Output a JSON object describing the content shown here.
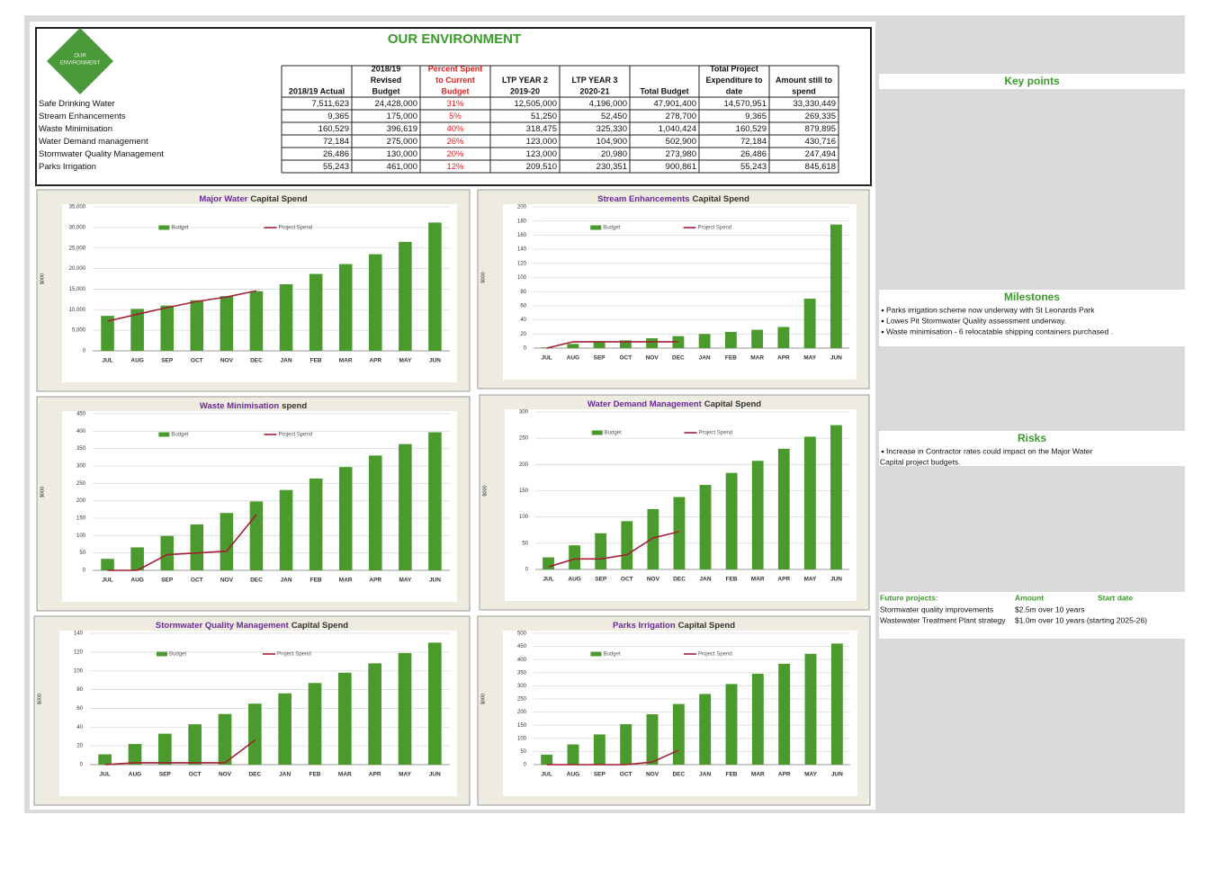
{
  "header": {
    "title": "OUR ENVIRONMENT",
    "logo_text": [
      "OUR",
      "ENVIRONMENT"
    ]
  },
  "table": {
    "columns": [
      [
        "2018/19 Actual"
      ],
      [
        "2018/19",
        "Revised",
        "Budget"
      ],
      [
        "Percent Spent",
        "to Current",
        "Budget"
      ],
      [
        "LTP YEAR 2",
        "2019-20"
      ],
      [
        "LTP YEAR 3",
        "2020-21"
      ],
      [
        "Total Budget"
      ],
      [
        "Total Project",
        "Expenditure to",
        "date"
      ],
      [
        "Amount still to",
        "spend"
      ]
    ],
    "rows": [
      [
        "Safe Drinking Water",
        "7,511,623",
        "24,428,000",
        "31%",
        "12,505,000",
        "4,196,000",
        "47,901,400",
        "14,570,951",
        "33,330,449"
      ],
      [
        "Stream Enhancements",
        "9,365",
        "175,000",
        "5%",
        "51,250",
        "52,450",
        "278,700",
        "9,365",
        "269,335"
      ],
      [
        "Waste Minimisation",
        "160,529",
        "396,619",
        "40%",
        "318,475",
        "325,330",
        "1,040,424",
        "160,529",
        "879,895"
      ],
      [
        "Water Demand management",
        "72,184",
        "275,000",
        "26%",
        "123,000",
        "104,900",
        "502,900",
        "72,184",
        "430,716"
      ],
      [
        "Stormwater Quality Management",
        "26,486",
        "130,000",
        "20%",
        "123,000",
        "20,980",
        "273,980",
        "26,486",
        "247,494"
      ],
      [
        "Parks Irrigation",
        "55,243",
        "461,000",
        "12%",
        "209,510",
        "230,351",
        "900,861",
        "55,243",
        "845,618"
      ]
    ]
  },
  "chart_data": [
    {
      "type": "bar",
      "title": [
        "Major Water",
        "Capital Spend"
      ],
      "y_label": "$000",
      "categories": [
        "JUL",
        "AUG",
        "SEP",
        "OCT",
        "NOV",
        "DEC",
        "JAN",
        "FEB",
        "MAR",
        "APR",
        "MAY",
        "JUN"
      ],
      "series": [
        {
          "name": "Budget",
          "color": "#4a9a2e",
          "values": [
            8500,
            10200,
            11000,
            12300,
            13300,
            14500,
            16200,
            18700,
            21100,
            23500,
            26500,
            31200
          ]
        },
        {
          "name": "Project Spend",
          "color": "#a31f34",
          "values": [
            7200,
            8900,
            10500,
            12000,
            13100,
            14600,
            null,
            null,
            null,
            null,
            null,
            null
          ]
        }
      ],
      "ylim": [
        0,
        35000
      ],
      "yticks": [
        0,
        {
          "value": 5000,
          "label": "5,000"
        },
        {
          "value": 10000,
          "label": "10,000"
        },
        {
          "value": 15000,
          "label": "15,000"
        },
        {
          "value": 20000,
          "label": "20,000"
        },
        {
          "value": 25000,
          "label": "25,000"
        },
        {
          "value": 30000,
          "label": "30,000"
        },
        {
          "value": 35000,
          "label": "35,000"
        }
      ],
      "grid": true
    },
    {
      "type": "bar",
      "title": [
        "Stream Enhancements",
        "Capital Spend"
      ],
      "y_label": "$000",
      "categories": [
        "JUL",
        "AUG",
        "SEP",
        "OCT",
        "NOV",
        "DEC",
        "JAN",
        "FEB",
        "MAR",
        "APR",
        "MAY",
        "JUN"
      ],
      "series": [
        {
          "name": "Budget",
          "color": "#4a9a2e",
          "values": [
            1,
            6,
            9,
            11,
            14,
            17,
            20,
            23,
            26,
            30,
            70,
            175
          ]
        },
        {
          "name": "Project Spend",
          "color": "#a31f34",
          "values": [
            0,
            9,
            9,
            9,
            9,
            9,
            null,
            null,
            null,
            null,
            null,
            null
          ]
        }
      ],
      "ylim": [
        0,
        200
      ],
      "yticks": [
        0,
        20,
        40,
        60,
        80,
        100,
        120,
        140,
        160,
        180,
        200
      ],
      "grid": true
    },
    {
      "type": "bar",
      "title": [
        "Waste Minimisation",
        "spend"
      ],
      "y_label": "$000",
      "categories": [
        "JUL",
        "AUG",
        "SEP",
        "OCT",
        "NOV",
        "DEC",
        "JAN",
        "FEB",
        "MAR",
        "APR",
        "MAY",
        "JUN"
      ],
      "series": [
        {
          "name": "Budget",
          "color": "#4a9a2e",
          "values": [
            33,
            66,
            99,
            132,
            165,
            198,
            231,
            264,
            297,
            330,
            363,
            397
          ]
        },
        {
          "name": "Project Spend",
          "color": "#a31f34",
          "values": [
            0,
            0,
            45,
            50,
            55,
            160,
            null,
            null,
            null,
            null,
            null,
            null
          ]
        }
      ],
      "ylim": [
        0,
        450
      ],
      "yticks": [
        0,
        50,
        100,
        150,
        200,
        250,
        300,
        350,
        400,
        450
      ],
      "grid": true
    },
    {
      "type": "bar",
      "title": [
        "Water Demand Management",
        "Capital Spend"
      ],
      "y_label": "$000",
      "categories": [
        "JUL",
        "AUG",
        "SEP",
        "OCT",
        "NOV",
        "DEC",
        "JAN",
        "FEB",
        "MAR",
        "APR",
        "MAY",
        "JUN"
      ],
      "series": [
        {
          "name": "Budget",
          "color": "#4a9a2e",
          "values": [
            23,
            46,
            69,
            92,
            115,
            138,
            161,
            184,
            207,
            230,
            253,
            275
          ]
        },
        {
          "name": "Project Spend",
          "color": "#a31f34",
          "values": [
            5,
            20,
            20,
            28,
            60,
            72,
            null,
            null,
            null,
            null,
            null,
            null
          ]
        }
      ],
      "ylim": [
        0,
        300
      ],
      "yticks": [
        0,
        50,
        100,
        150,
        200,
        250,
        300
      ],
      "grid": true
    },
    {
      "type": "bar",
      "title": [
        "Stormwater Quality Management",
        "Capital Spend"
      ],
      "y_label": "$000",
      "categories": [
        "JUL",
        "AUG",
        "SEP",
        "OCT",
        "NOV",
        "DEC",
        "JAN",
        "FEB",
        "MAR",
        "APR",
        "MAY",
        "JUN"
      ],
      "series": [
        {
          "name": "Budget",
          "color": "#4a9a2e",
          "values": [
            11,
            22,
            33,
            43,
            54,
            65,
            76,
            87,
            98,
            108,
            119,
            130
          ]
        },
        {
          "name": "Project Spend",
          "color": "#a31f34",
          "values": [
            0,
            2,
            2,
            2,
            2,
            26,
            null,
            null,
            null,
            null,
            null,
            null
          ]
        }
      ],
      "ylim": [
        0,
        140
      ],
      "yticks": [
        0,
        20,
        40,
        60,
        80,
        100,
        120,
        140
      ],
      "grid": true
    },
    {
      "type": "bar",
      "title": [
        "Parks Irrigation",
        "Capital Spend"
      ],
      "y_label": "$000",
      "categories": [
        "JUL",
        "AUG",
        "SEP",
        "OCT",
        "NOV",
        "DEC",
        "JAN",
        "FEB",
        "MAR",
        "APR",
        "MAY",
        "JUN"
      ],
      "series": [
        {
          "name": "Budget",
          "color": "#4a9a2e",
          "values": [
            38,
            77,
            115,
            154,
            192,
            231,
            269,
            307,
            346,
            384,
            422,
            461
          ]
        },
        {
          "name": "Project Spend",
          "color": "#a31f34",
          "values": [
            0,
            0,
            0,
            0,
            10,
            55,
            null,
            null,
            null,
            null,
            null,
            null
          ]
        }
      ],
      "ylim": [
        0,
        500
      ],
      "yticks": [
        0,
        50,
        100,
        150,
        200,
        250,
        300,
        350,
        400,
        450,
        500
      ],
      "grid": true
    }
  ],
  "side": {
    "key_points": "Key points",
    "milestones": {
      "title": "Milestones",
      "items": [
        "Parks irrigation scheme now underway with St Leonards Park",
        "Lowes Pit Stormwater Quality assessment underway.",
        "Waste minimisation - 6 relocatable shipping containers purchased ."
      ]
    },
    "risks": {
      "title": "Risks",
      "lines": [
        "Increase in Contractor rates could impact on the Major Water",
        "Capital project budgets."
      ]
    },
    "future": {
      "header": [
        "Future projects:",
        "Amount",
        "Start date"
      ],
      "rows": [
        [
          "Stormwater quality improvements",
          "$2.5m over 10 years"
        ],
        [
          "Wastewater Treatment Plant strategy",
          "$1.0m over 10 years (starting 2025-26)"
        ]
      ]
    }
  }
}
